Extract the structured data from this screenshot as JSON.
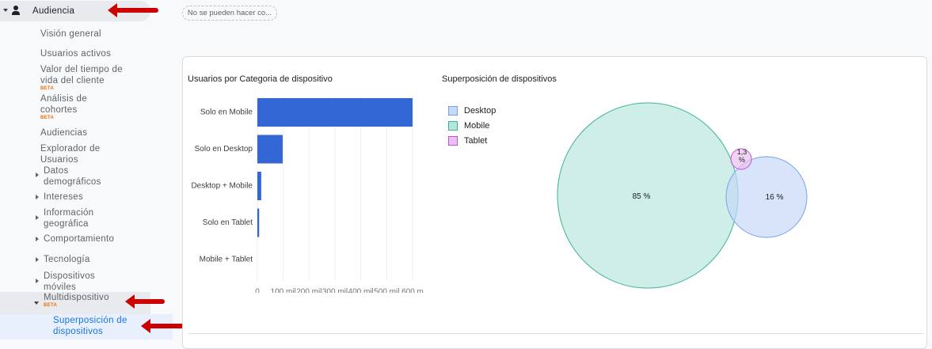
{
  "sidebar": {
    "section": "Audiencia",
    "items": [
      "Visión general",
      "Usuarios activos",
      "Valor del tiempo de vida del cliente",
      "Análisis de cohortes",
      "Audiencias",
      "Explorador de Usuarios"
    ],
    "beta": "BETA",
    "groups": [
      "Datos demográficos",
      "Intereses",
      "Información geográfica",
      "Comportamiento",
      "Tecnología",
      "Dispositivos móviles",
      "Multidispositivo"
    ],
    "active": "Superposición de dispositivos"
  },
  "chip": "No se pueden hacer co...",
  "colors": {
    "bar": "#3367d6",
    "desktop": "#c6d9f7",
    "mobile": "#b3e5da",
    "tablet": "#e9c1ee",
    "arrow": "#cc0000"
  },
  "chart_data": [
    {
      "type": "bar",
      "orientation": "horizontal",
      "title": "Usuarios por Categoria de dispositivo",
      "categories": [
        "Solo en Mobile",
        "Solo en Desktop",
        "Desktop + Mobile",
        "Solo en Tablet",
        "Mobile + Tablet"
      ],
      "values": [
        600000,
        98000,
        15000,
        7000,
        0
      ],
      "xticks": [
        "0",
        "100 mil",
        "200 mil",
        "300 mil",
        "400 mil",
        "500 mil",
        "600 m"
      ],
      "xlim": [
        0,
        600000
      ],
      "grid": true
    },
    {
      "type": "venn",
      "title": "Superposición de dispositivos",
      "legend": [
        "Desktop",
        "Mobile",
        "Tablet"
      ],
      "legend_position": "top-left",
      "sets": [
        {
          "name": "Mobile",
          "label": "85 %",
          "value": 85
        },
        {
          "name": "Desktop",
          "label": "16 %",
          "value": 16
        },
        {
          "name": "Tablet",
          "label": "1,3 %",
          "value": 1.3
        }
      ]
    }
  ]
}
